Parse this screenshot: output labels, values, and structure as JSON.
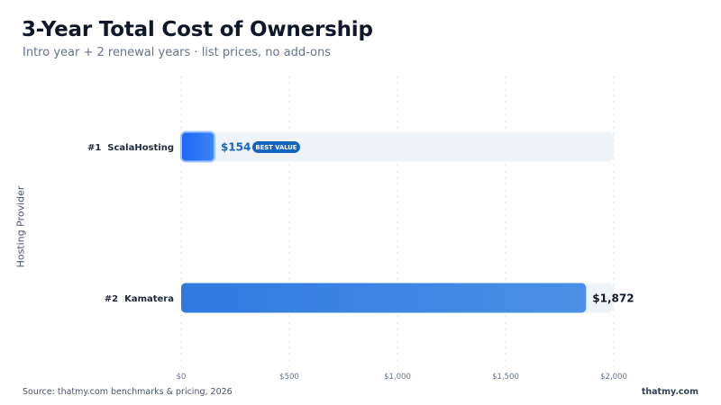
{
  "chart_data": {
    "type": "bar",
    "orientation": "horizontal",
    "title": "3-Year Total Cost of Ownership",
    "subtitle": "Intro year + 2 renewal years · list prices, no add-ons",
    "ylabel": "Hosting Provider",
    "xlabel": "",
    "xlim": [
      0,
      2000
    ],
    "xticks": [
      0,
      500,
      1000,
      1500,
      2000
    ],
    "xtick_labels": [
      "$0",
      "$500",
      "$1,000",
      "$1,500",
      "$2,000"
    ],
    "grid": "vertical dashed",
    "categories": [
      "#1  ScalaHosting",
      "#2  Kamatera"
    ],
    "values": [
      154,
      1872
    ],
    "value_labels": [
      "$154",
      "$1,872"
    ],
    "badges": [
      {
        "category_index": 0,
        "text": "BEST VALUE"
      }
    ],
    "colors": {
      "highlight_bar": "#1d6ff2",
      "bar": "#3b82e6",
      "track": "#eef3f8",
      "highlight_label": "#1565c0",
      "badge_bg": "#1565c0",
      "badge_text": "#ffffff"
    }
  },
  "footer": {
    "source": "Source: thatmy.com benchmarks & pricing, 2026",
    "brand": "thatmy.com"
  }
}
